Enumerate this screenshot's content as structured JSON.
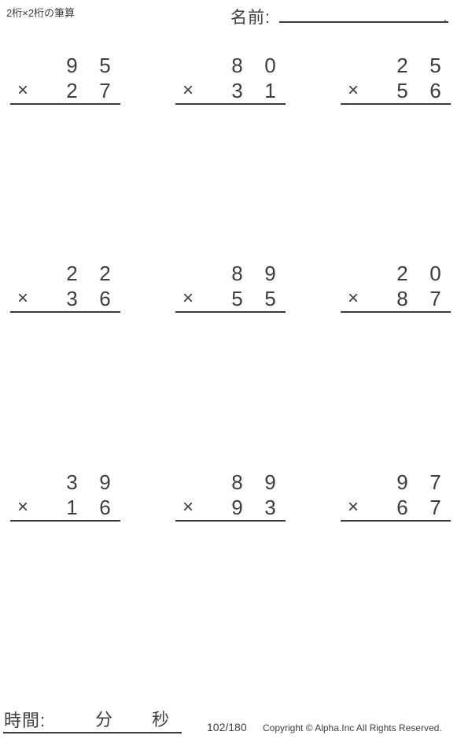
{
  "header": {
    "worksheet_title": "2桁×2桁の筆算",
    "name_label": "名前:",
    "name_line_end": "."
  },
  "problems": [
    {
      "multiplicand": "95",
      "multiplier": "27",
      "operator": "×"
    },
    {
      "multiplicand": "80",
      "multiplier": "31",
      "operator": "×"
    },
    {
      "multiplicand": "25",
      "multiplier": "56",
      "operator": "×"
    },
    {
      "multiplicand": "22",
      "multiplier": "36",
      "operator": "×"
    },
    {
      "multiplicand": "89",
      "multiplier": "55",
      "operator": "×"
    },
    {
      "multiplicand": "20",
      "multiplier": "87",
      "operator": "×"
    },
    {
      "multiplicand": "39",
      "multiplier": "16",
      "operator": "×"
    },
    {
      "multiplicand": "89",
      "multiplier": "93",
      "operator": "×"
    },
    {
      "multiplicand": "97",
      "multiplier": "67",
      "operator": "×"
    }
  ],
  "footer": {
    "time_label": "時間:",
    "minutes_label": "分",
    "seconds_label": "秒",
    "progress": "102/180",
    "copyright": "Copyright © Alpha.Inc All Rights Reserved."
  },
  "colors": {
    "text": "#3d3d3d",
    "line": "#3a3a3a",
    "background": "#ffffff"
  }
}
